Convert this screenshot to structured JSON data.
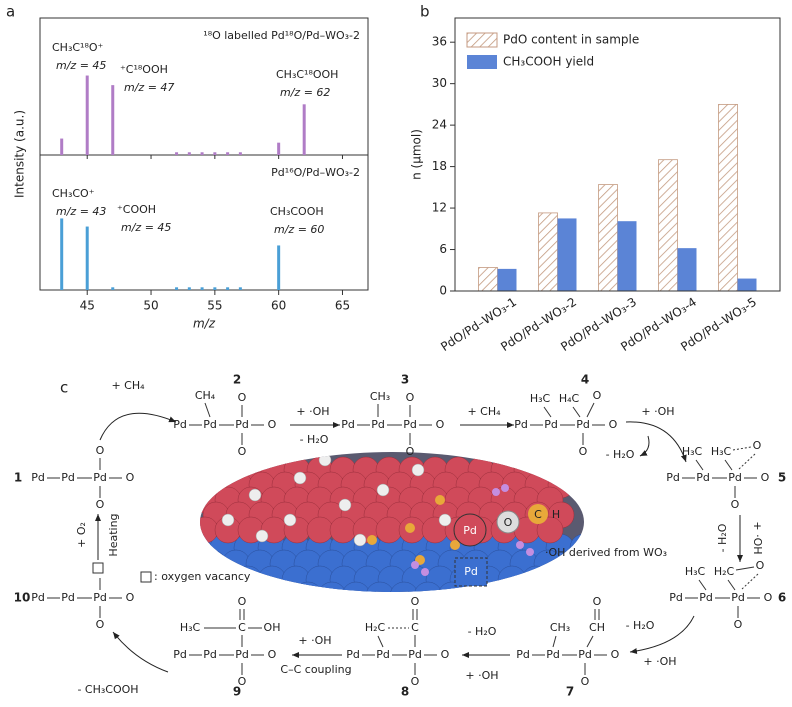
{
  "chart_data": [
    {
      "type": "spectrum",
      "label": "a",
      "xlabel": "m/z",
      "ylabel": "Intensity (a.u.)",
      "xlim": [
        41.3,
        67
      ],
      "xticks": [
        45,
        50,
        55,
        60,
        65
      ],
      "ylim": [
        0,
        1
      ],
      "series": [
        {
          "name": "¹⁸O labelled Pd¹⁸O/Pd–WO₃-2",
          "color": "#b07cc6",
          "x": [
            43,
            45,
            47,
            52,
            53,
            54,
            55,
            56,
            57,
            60,
            62
          ],
          "values": [
            0.12,
            0.58,
            0.51,
            0.02,
            0.02,
            0.02,
            0.02,
            0.02,
            0.02,
            0.09,
            0.37
          ]
        },
        {
          "name": "Pd¹⁶O/Pd–WO₃-2",
          "color": "#4a9fd6",
          "x": [
            43,
            45,
            47,
            52,
            53,
            54,
            55,
            56,
            57,
            60
          ],
          "values": [
            0.53,
            0.47,
            0.02,
            0.02,
            0.02,
            0.02,
            0.02,
            0.02,
            0.02,
            0.33
          ]
        }
      ],
      "annotations": [
        {
          "text": "CH₃C¹⁸O⁺",
          "sub": "m/z = 45"
        },
        {
          "text": "⁺C¹⁸OOH",
          "sub": "m/z = 47"
        },
        {
          "text": "CH₃C¹⁸OOH",
          "sub": "m/z = 62"
        },
        {
          "text": "CH₃CO⁺",
          "sub": "m/z = 43"
        },
        {
          "text": "⁺COOH",
          "sub": "m/z = 45"
        },
        {
          "text": "CH₃COOH",
          "sub": "m/z = 60"
        }
      ]
    },
    {
      "type": "bar",
      "label": "b",
      "ylabel": "n (μmol)",
      "categories": [
        "PdO/Pd–WO₃-1",
        "PdO/Pd–WO₃-2",
        "PdO/Pd–WO₃-3",
        "PdO/Pd–WO₃-4",
        "PdO/Pd–WO₃-5"
      ],
      "series": [
        {
          "name": "PdO content in sample",
          "color": "#c49a80",
          "pattern": "hatch",
          "values": [
            3.4,
            11.3,
            15.4,
            19,
            27
          ]
        },
        {
          "name": "CH₃COOH yield",
          "color": "#5b84d6",
          "values": [
            3.2,
            10.5,
            10.1,
            6.2,
            1.8
          ]
        }
      ],
      "ylim": [
        0,
        39.5
      ],
      "yticks": [
        0,
        6,
        12,
        18,
        24,
        30,
        36
      ],
      "legend": "upper left"
    }
  ],
  "scheme": {
    "label": "c",
    "numbers": [
      "1",
      "2",
      "3",
      "4",
      "5",
      "6",
      "7",
      "8",
      "9",
      "10"
    ],
    "atoms": {
      "pd": "Pd",
      "o": "O",
      "ch4": "CH₄",
      "ch3": "CH₃",
      "h3c": "H₃C",
      "h4c": "H₄C",
      "h2c": "H₂C",
      "c": "C",
      "ch": "CH",
      "oh": "OH",
      "h": "H"
    },
    "steps": {
      "addCH4": "+ CH₄",
      "addOH": "+ ·OH",
      "lossH2O": "- H₂O",
      "addO2": "+ O₂",
      "heating": "Heating",
      "lossAcid": "- CH₃COOH",
      "coupling": "C–C coupling"
    },
    "notes": {
      "vacancy": ": oxygen vacancy",
      "wo3": "·OH derived from WO₃"
    }
  }
}
